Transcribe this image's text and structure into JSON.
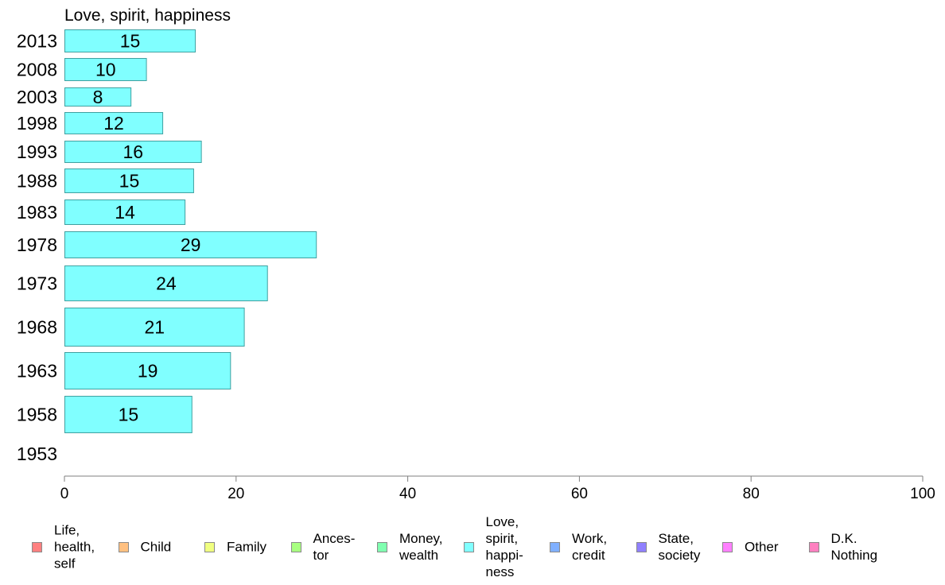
{
  "chart_data": {
    "type": "bar",
    "orientation": "horizontal",
    "title": "Love, spirit, happiness",
    "categories": [
      "2013",
      "2008",
      "2003",
      "1998",
      "1993",
      "1988",
      "1983",
      "1978",
      "1973",
      "1968",
      "1963",
      "1958",
      "1953"
    ],
    "series": [
      {
        "name": "Love, spirit, happiness",
        "values": [
          15.3,
          9.6,
          7.8,
          11.5,
          16.0,
          15.1,
          14.1,
          29.4,
          23.7,
          21.0,
          19.4,
          14.9,
          null
        ]
      }
    ],
    "data_labels": [
      "15",
      "10",
      "8",
      "12",
      "16",
      "15",
      "14",
      "29",
      "24",
      "21",
      "19",
      "15",
      ""
    ],
    "x_axis": {
      "range": [
        0,
        100
      ],
      "ticks": [
        "0",
        "20",
        "40",
        "60",
        "80",
        "100"
      ]
    },
    "grid": false,
    "legend_position": "bottom",
    "legend": [
      {
        "label": "Life,\nhealth,\nself",
        "color": "#ff8080"
      },
      {
        "label": "Child",
        "color": "#ffc080"
      },
      {
        "label": "Family",
        "color": "#f0ff80"
      },
      {
        "label": "Ances-\ntor",
        "color": "#a8ff80"
      },
      {
        "label": "Money,\nwealth",
        "color": "#80ffb0"
      },
      {
        "label": "Love,\nspirit,\nhappi-\nness",
        "color": "#80ffff"
      },
      {
        "label": "Work,\ncredit",
        "color": "#80b0ff"
      },
      {
        "label": "State,\nsociety",
        "color": "#9080ff"
      },
      {
        "label": "Other",
        "color": "#ff80ff"
      },
      {
        "label": "D.K.\nNothing",
        "color": "#ff80c0"
      }
    ],
    "bar_color": "#80ffff",
    "bar_border_color": "#40a0a0"
  }
}
